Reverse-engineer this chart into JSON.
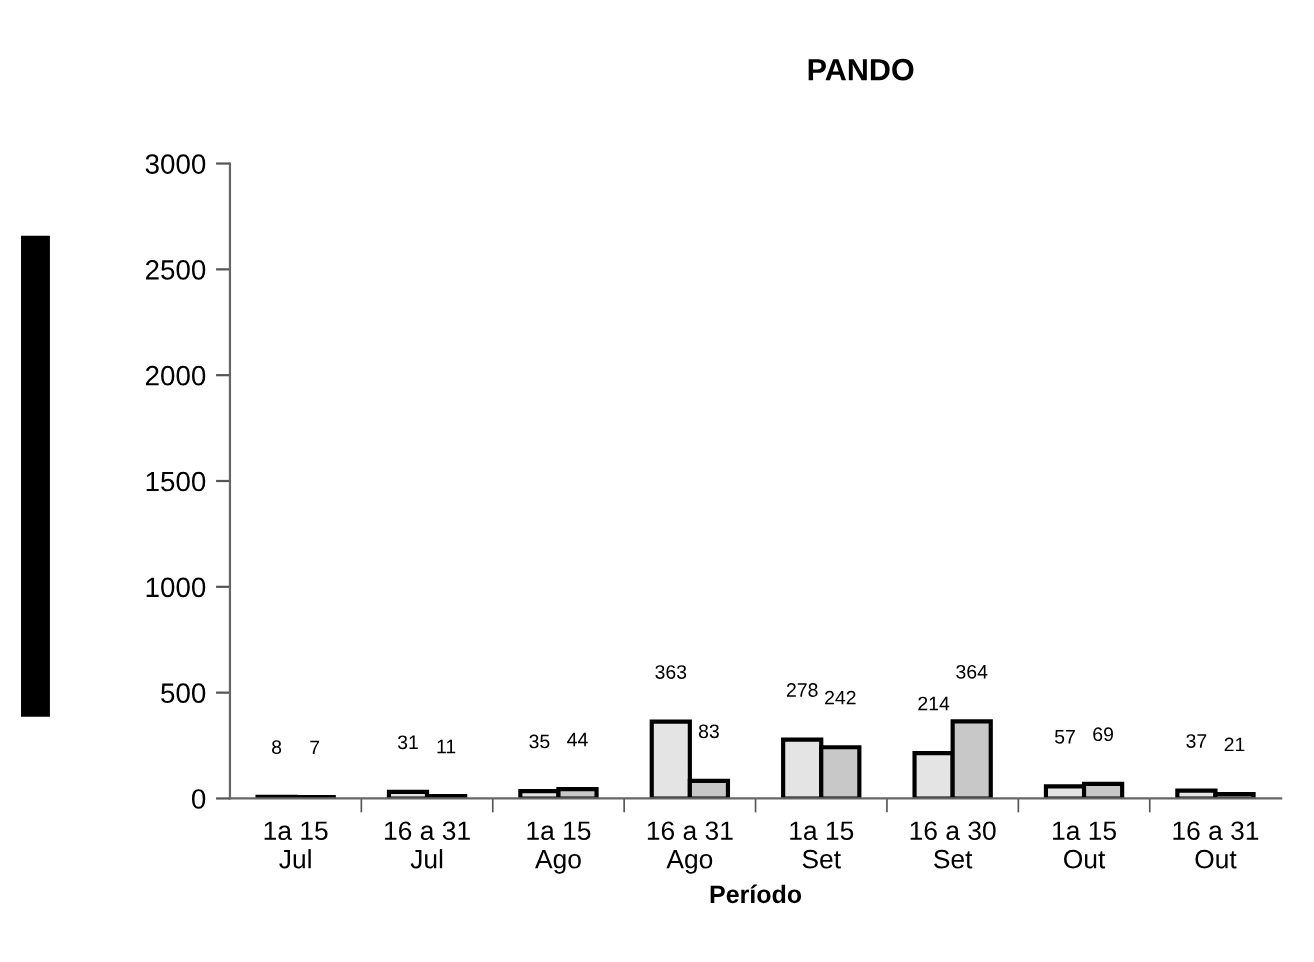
{
  "chart_data": {
    "type": "bar",
    "title": "PANDO",
    "xlabel": "Período",
    "categories": [
      "1a 15\nJul",
      "16 a 31\nJul",
      "1a 15\nAgo",
      "16 a 31\nAgo",
      "1a 15\nSet",
      "16 a 30\nSet",
      "1a 15\nOut",
      "16 a 31\nOut"
    ],
    "series": [
      {
        "color": "#e4e4e4",
        "values": [
          8,
          31,
          35,
          363,
          278,
          214,
          57,
          37
        ]
      },
      {
        "color": "#c8c8c8",
        "values": [
          7,
          11,
          44,
          83,
          242,
          364,
          69,
          21
        ]
      }
    ],
    "ylim": [
      0,
      3000
    ],
    "yticks": [
      0,
      500,
      1000,
      1500,
      2000,
      2500,
      3000
    ],
    "data_labels": true,
    "grid": false,
    "legend": false
  }
}
